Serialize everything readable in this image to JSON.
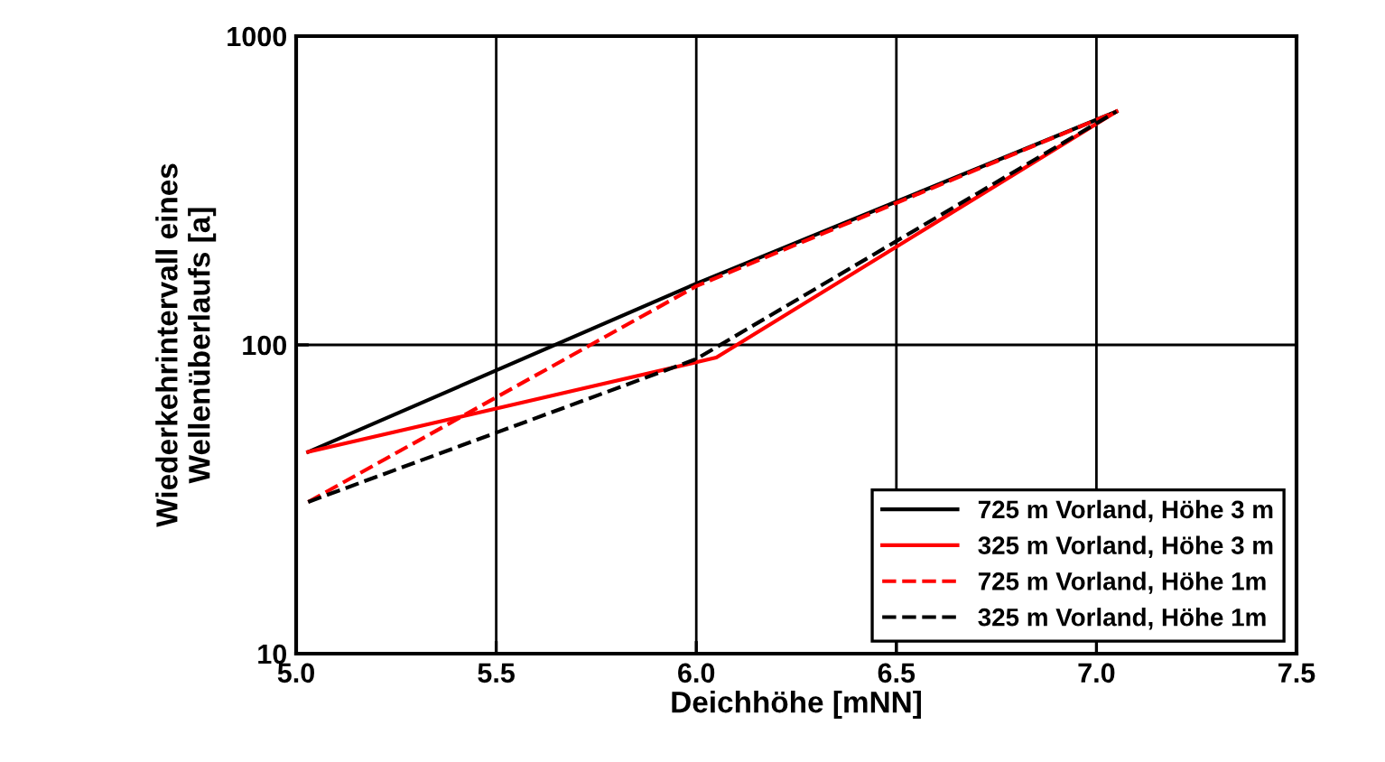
{
  "chart_data": {
    "type": "line",
    "xlabel": "Deichhöhe [mNN]",
    "ylabel": "Wiederkehrintervall eines\nWellenüberlaufs [a]",
    "xlim": [
      5.0,
      7.5
    ],
    "xticks": [
      {
        "value": 5.0,
        "label": "5.0"
      },
      {
        "value": 5.5,
        "label": "5.5"
      },
      {
        "value": 6.0,
        "label": "6.0"
      },
      {
        "value": 6.5,
        "label": "6.5"
      },
      {
        "value": 7.0,
        "label": "7.0"
      },
      {
        "value": 7.5,
        "label": "7.5"
      }
    ],
    "ylim": [
      10,
      1000
    ],
    "yticks": [
      10,
      100,
      1000
    ],
    "log": "y",
    "grid": true,
    "legend": "bottom right",
    "series": [
      {
        "name": "725 m Vorland, Höhe 3 m",
        "color": "#000000",
        "line_style": "solid",
        "x": [
          5.03,
          6.0,
          7.05
        ],
        "values": [
          45,
          158,
          570
        ]
      },
      {
        "name": "325 m Vorland, Höhe 3 m",
        "color": "#ff0000",
        "line_style": "solid",
        "x": [
          5.03,
          6.05,
          7.05
        ],
        "values": [
          45,
          91,
          570
        ]
      },
      {
        "name": "725 m Vorland, Höhe 1m",
        "color": "#ff0000",
        "line_style": "dashed",
        "x": [
          5.03,
          6.0,
          7.05
        ],
        "values": [
          31,
          155,
          570
        ]
      },
      {
        "name": "325 m Vorland, Höhe 1m",
        "color": "#000000",
        "line_style": "dashed",
        "x": [
          5.03,
          6.0,
          7.05
        ],
        "values": [
          31,
          90,
          570
        ]
      }
    ]
  }
}
